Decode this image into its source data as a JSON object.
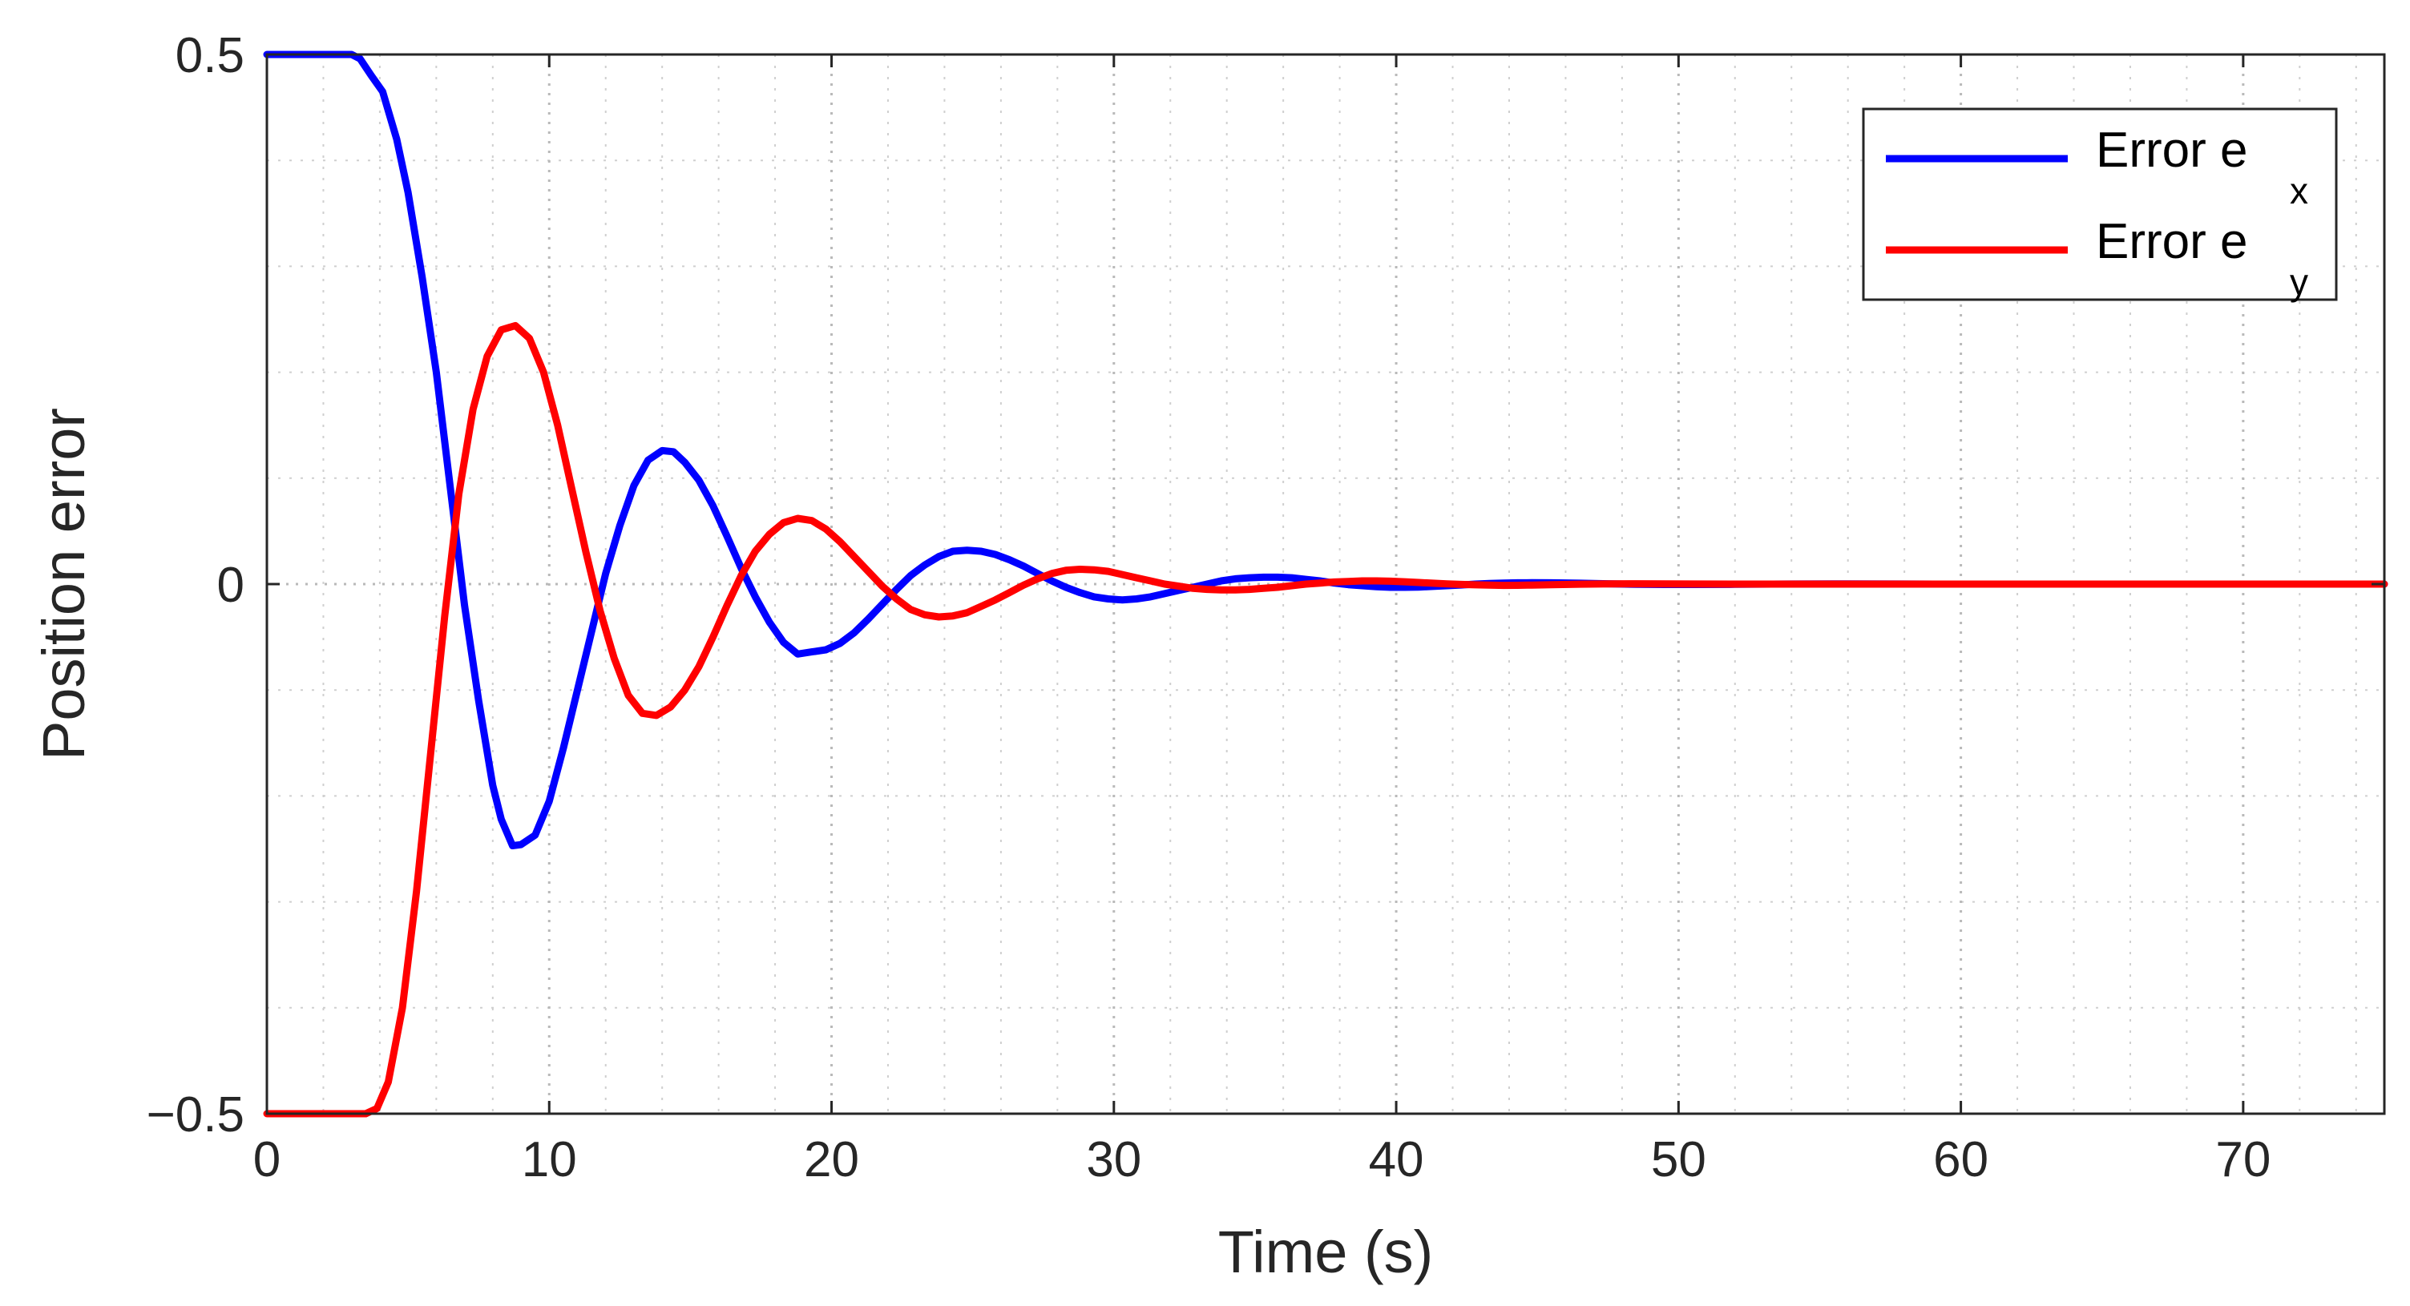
{
  "chart_data": {
    "type": "line",
    "title": "",
    "xlabel": "Time (s)",
    "ylabel": "Position error",
    "xlim": [
      0,
      75
    ],
    "ylim": [
      -0.5,
      0.5
    ],
    "x_ticks": [
      0,
      10,
      20,
      30,
      40,
      50,
      60,
      70
    ],
    "x_tick_labels": [
      "0",
      "10",
      "20",
      "30",
      "40",
      "50",
      "60",
      "70"
    ],
    "y_ticks": [
      -0.5,
      0,
      0.5
    ],
    "y_tick_labels": [
      "−0.5",
      "0",
      "0.5"
    ],
    "grid": true,
    "minor_grid": true,
    "legend_position": "top-right",
    "series": [
      {
        "name": "Error e x",
        "legend_text": "Error e",
        "legend_subscript": "x",
        "color": "#0000ff",
        "x": [
          0,
          1,
          2,
          3,
          3.3,
          3.7,
          4.1,
          4.6,
          5.0,
          5.5,
          6.0,
          6.5,
          7.0,
          7.5,
          8.0,
          8.3,
          8.7,
          9.0,
          9.5,
          10.0,
          10.5,
          11.0,
          11.5,
          12.0,
          12.5,
          13.0,
          13.5,
          14.0,
          14.4,
          14.8,
          15.3,
          15.8,
          16.3,
          16.8,
          17.3,
          17.8,
          18.3,
          18.8,
          19.3,
          19.8,
          20.3,
          20.8,
          21.3,
          21.8,
          22.3,
          22.8,
          23.3,
          23.8,
          24.3,
          24.8,
          25.3,
          25.8,
          26.3,
          26.8,
          27.3,
          27.8,
          28.3,
          28.8,
          29.3,
          29.8,
          30.3,
          30.8,
          31.3,
          31.8,
          32.3,
          32.8,
          33.3,
          33.8,
          34.3,
          34.8,
          35.3,
          35.8,
          36.3,
          36.8,
          37.3,
          37.8,
          38.3,
          38.8,
          39.3,
          39.8,
          40.3,
          40.8,
          41.3,
          41.8,
          42.3,
          42.8,
          43.3,
          43.8,
          44.3,
          44.8,
          45.5,
          46.5,
          47.5,
          48.5,
          49.5,
          50.5,
          52,
          54,
          56,
          58,
          60,
          62,
          64,
          66,
          68,
          70,
          72,
          75
        ],
        "y": [
          0.5,
          0.5,
          0.5,
          0.5,
          0.496,
          0.48,
          0.465,
          0.42,
          0.37,
          0.29,
          0.2,
          0.09,
          -0.02,
          -0.11,
          -0.19,
          -0.222,
          -0.247,
          -0.246,
          -0.237,
          -0.205,
          -0.155,
          -0.1,
          -0.045,
          0.01,
          0.055,
          0.093,
          0.117,
          0.126,
          0.125,
          0.115,
          0.098,
          0.074,
          0.045,
          0.015,
          -0.012,
          -0.036,
          -0.055,
          -0.066,
          -0.064,
          -0.062,
          -0.056,
          -0.046,
          -0.033,
          -0.019,
          -0.005,
          0.008,
          0.018,
          0.026,
          0.031,
          0.032,
          0.031,
          0.028,
          0.023,
          0.017,
          0.01,
          0.003,
          -0.003,
          -0.008,
          -0.012,
          -0.014,
          -0.015,
          -0.014,
          -0.012,
          -0.009,
          -0.006,
          -0.003,
          0.0,
          0.003,
          0.005,
          0.006,
          0.0065,
          0.0065,
          0.006,
          0.0045,
          0.003,
          0.001,
          -0.0005,
          -0.0015,
          -0.0025,
          -0.003,
          -0.003,
          -0.0028,
          -0.0022,
          -0.0015,
          -0.0008,
          0.0,
          0.0006,
          0.001,
          0.0012,
          0.0013,
          0.0012,
          0.0008,
          0.0003,
          -0.0002,
          -0.0004,
          -0.0004,
          -0.0002,
          0.0001,
          0.0002,
          0.0001,
          0.0,
          0.0,
          0.0,
          0.0,
          0.0,
          0.0,
          0.0,
          0.0
        ]
      },
      {
        "name": "Error e y",
        "legend_text": "Error e",
        "legend_subscript": "y",
        "color": "#ff0000",
        "x": [
          0,
          1,
          2,
          3,
          3.5,
          3.9,
          4.3,
          4.8,
          5.3,
          5.8,
          6.3,
          6.8,
          7.3,
          7.8,
          8.3,
          8.8,
          9.3,
          9.8,
          10.3,
          10.8,
          11.3,
          11.8,
          12.3,
          12.8,
          13.3,
          13.8,
          14.3,
          14.8,
          15.3,
          15.8,
          16.3,
          16.8,
          17.3,
          17.8,
          18.3,
          18.8,
          19.3,
          19.8,
          20.3,
          20.8,
          21.3,
          21.8,
          22.3,
          22.8,
          23.3,
          23.8,
          24.3,
          24.8,
          25.3,
          25.8,
          26.3,
          26.8,
          27.3,
          27.8,
          28.3,
          28.8,
          29.3,
          29.8,
          30.3,
          30.8,
          31.3,
          31.8,
          32.3,
          32.8,
          33.3,
          33.8,
          34.3,
          34.8,
          35.3,
          35.8,
          36.3,
          36.8,
          37.3,
          37.8,
          38.3,
          38.8,
          39.3,
          39.8,
          40.3,
          40.8,
          41.3,
          41.8,
          42.3,
          42.8,
          43.3,
          43.8,
          44.3,
          44.8,
          45.5,
          46.5,
          47.5,
          48.5,
          49.5,
          50.5,
          52,
          54,
          56,
          58,
          60,
          62,
          64,
          66,
          68,
          70,
          72,
          75
        ],
        "y": [
          -0.5,
          -0.5,
          -0.5,
          -0.5,
          -0.5,
          -0.495,
          -0.47,
          -0.4,
          -0.29,
          -0.16,
          -0.03,
          0.085,
          0.165,
          0.215,
          0.24,
          0.244,
          0.232,
          0.2,
          0.15,
          0.09,
          0.03,
          -0.025,
          -0.07,
          -0.105,
          -0.122,
          -0.124,
          -0.116,
          -0.1,
          -0.078,
          -0.05,
          -0.02,
          0.008,
          0.031,
          0.047,
          0.058,
          0.062,
          0.06,
          0.052,
          0.04,
          0.026,
          0.012,
          -0.002,
          -0.014,
          -0.024,
          -0.029,
          -0.031,
          -0.03,
          -0.027,
          -0.021,
          -0.015,
          -0.008,
          -0.001,
          0.005,
          0.01,
          0.013,
          0.014,
          0.0135,
          0.012,
          0.009,
          0.006,
          0.003,
          0.0,
          -0.002,
          -0.004,
          -0.005,
          -0.0055,
          -0.0055,
          -0.005,
          -0.004,
          -0.003,
          -0.0015,
          0.0,
          0.001,
          0.002,
          0.0025,
          0.003,
          0.003,
          0.0027,
          0.0022,
          0.0015,
          0.0008,
          0.0002,
          -0.0003,
          -0.0007,
          -0.001,
          -0.0012,
          -0.0011,
          -0.0009,
          -0.0005,
          -0.0001,
          0.0002,
          0.0003,
          0.0002,
          0.0001,
          0.0,
          0.0,
          0.0,
          0.0,
          0.0,
          0.0,
          0.0,
          0.0,
          0.0,
          0.0,
          0.0,
          0.0
        ]
      }
    ]
  }
}
